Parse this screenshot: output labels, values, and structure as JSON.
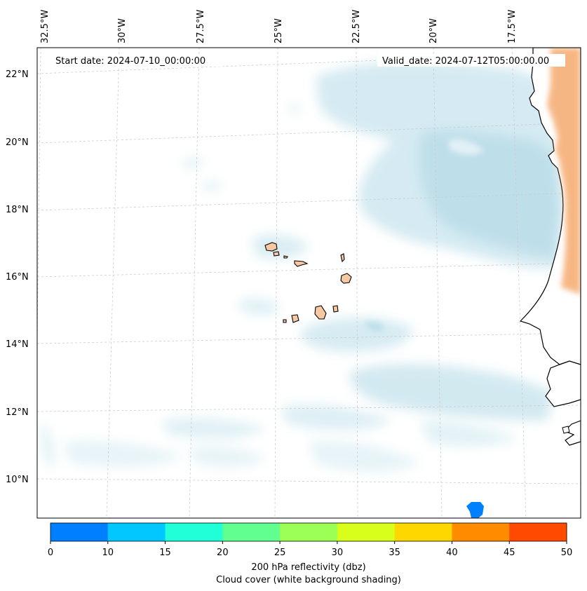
{
  "header": {
    "start_date": "Start date: 2024-07-10_00:00:00",
    "valid_date": "Valid_date: 2024-07-12T05:00:00.00"
  },
  "map": {
    "lon_labels": [
      "32.5°W",
      "30°W",
      "27.5°W",
      "25°W",
      "22.5°W",
      "20°W",
      "17.5°W"
    ],
    "lat_labels": [
      "22°N",
      "20°N",
      "18°N",
      "16°N",
      "14°N",
      "12°N",
      "10°N"
    ],
    "colors": {
      "land": "#ffffff",
      "islands": "#f6c9a2",
      "warm_land": "#f4a566",
      "cloud": "#bfe0ea",
      "grid": "#cccccc"
    }
  },
  "colorbar": {
    "ticks": [
      "0",
      "10",
      "15",
      "20",
      "25",
      "30",
      "35",
      "40",
      "45",
      "50"
    ],
    "colors": [
      "#0080ff",
      "#00c8ff",
      "#20ffd8",
      "#60ff90",
      "#9cff56",
      "#d8ff1c",
      "#ffd700",
      "#ff8c00",
      "#ff4a00"
    ],
    "label_line1": "200 hPa reflectivity (dbz)",
    "label_line2": "Cloud cover (white background shading)"
  }
}
